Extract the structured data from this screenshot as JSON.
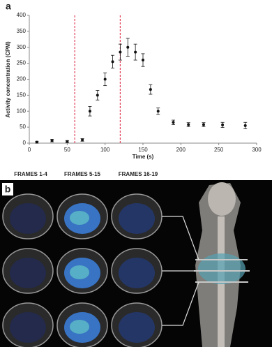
{
  "chart_data": {
    "type": "scatter",
    "panel_label": "a",
    "xlabel": "Time (s)",
    "ylabel": "Activity concentration (CPM)",
    "x": [
      10,
      30,
      50,
      70,
      80,
      90,
      100,
      110,
      120,
      130,
      140,
      150,
      160,
      170,
      190,
      210,
      230,
      255,
      285
    ],
    "values": [
      3,
      8,
      5,
      10,
      100,
      150,
      200,
      255,
      285,
      300,
      285,
      260,
      168,
      100,
      65,
      58,
      58,
      57,
      55
    ],
    "errors": [
      3,
      4,
      3,
      4,
      15,
      15,
      20,
      20,
      25,
      28,
      25,
      20,
      15,
      10,
      7,
      6,
      6,
      8,
      10
    ],
    "color": "#111111",
    "vlines": [
      60,
      120
    ],
    "vline_color": "#e0405a",
    "xlim": [
      0,
      300
    ],
    "xticks": [
      0,
      50,
      100,
      150,
      200,
      250,
      300
    ],
    "ylim": [
      0,
      400
    ],
    "yticks": [
      0,
      50,
      100,
      150,
      200,
      250,
      300,
      350,
      400
    ]
  },
  "image_panel": {
    "label": "b",
    "frame_labels": [
      "FRAMES 1-4",
      "FRAMES 5-15",
      "FRAMES 16-19"
    ]
  }
}
